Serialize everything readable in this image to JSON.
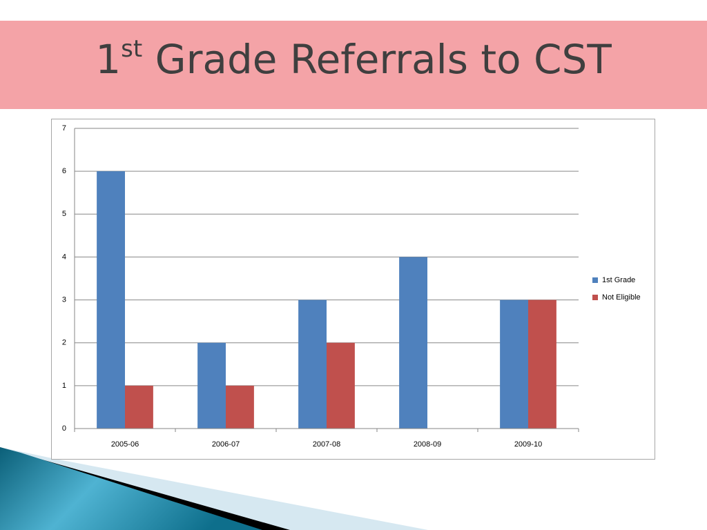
{
  "slide_title": {
    "number": "1",
    "superscript": "st",
    "rest": " Grade Referrals to CST"
  },
  "chart_data": {
    "type": "bar",
    "categories": [
      "2005-06",
      "2006-07",
      "2007-08",
      "2008-09",
      "2009-10"
    ],
    "series": [
      {
        "name": "1st Grade",
        "color": "#4f81bd",
        "values": [
          6,
          2,
          3,
          4,
          3
        ]
      },
      {
        "name": "Not Eligible",
        "color": "#c0504d",
        "values": [
          1,
          1,
          2,
          0,
          3
        ]
      }
    ],
    "ylim": [
      0,
      7
    ],
    "yticks": [
      0,
      1,
      2,
      3,
      4,
      5,
      6,
      7
    ],
    "grid": true,
    "legend": "right"
  }
}
